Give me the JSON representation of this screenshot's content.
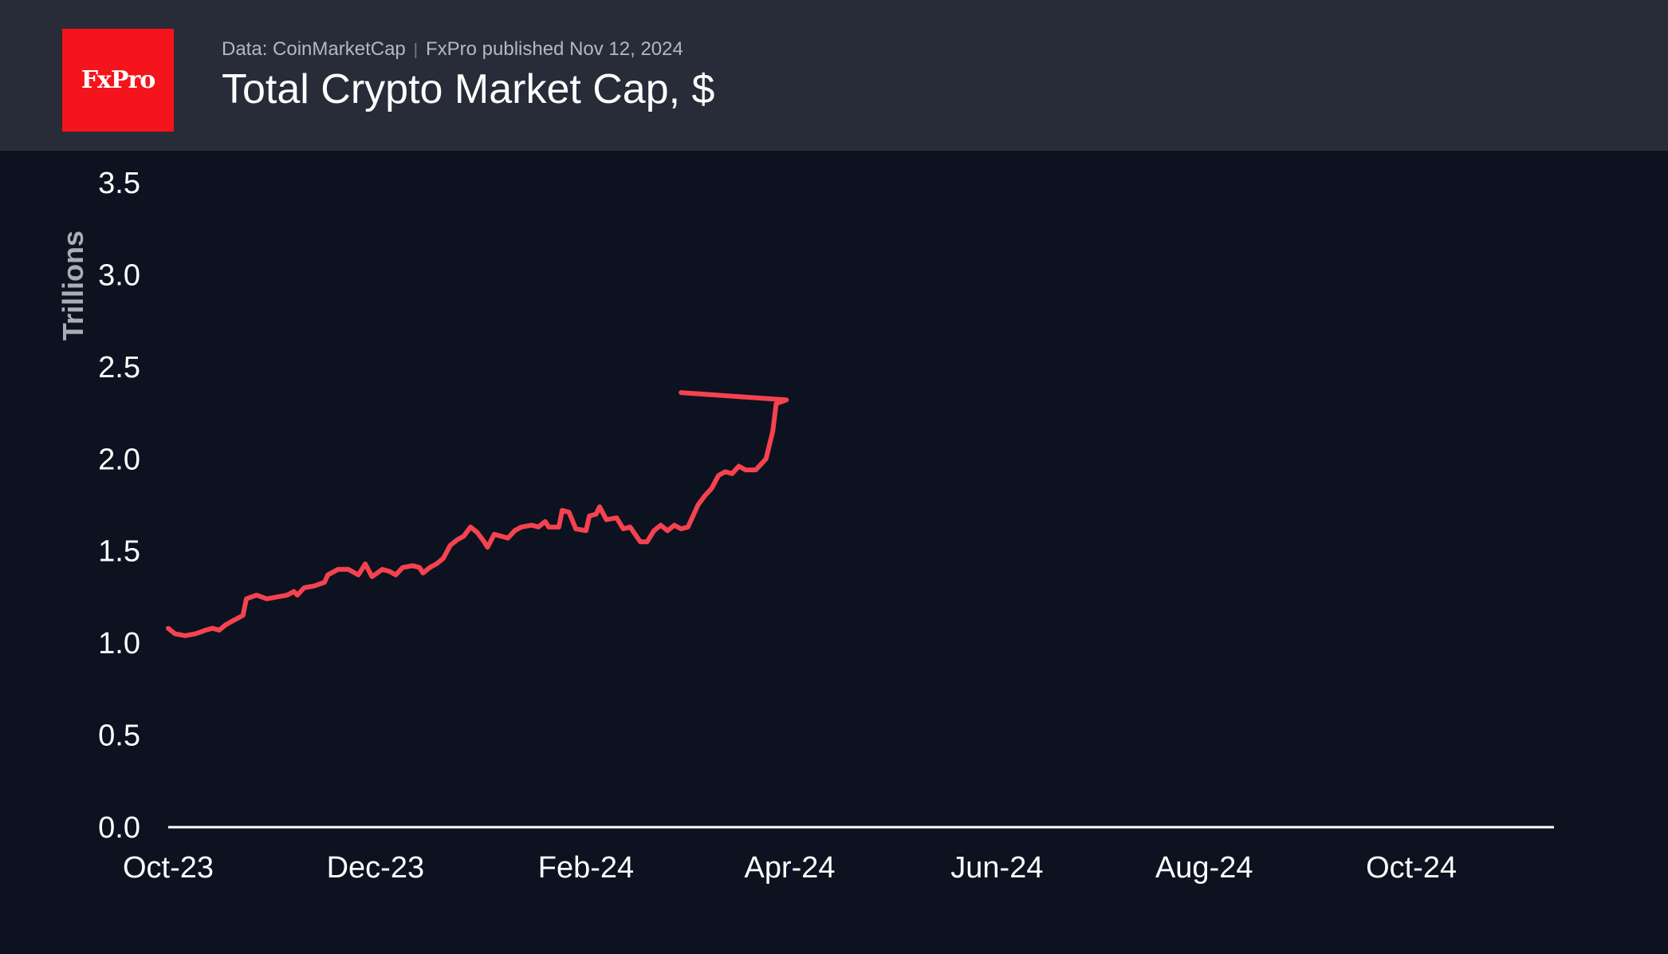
{
  "header": {
    "logo_text": "FxPro",
    "source": "Data: CoinMarketCap",
    "publisher": "FxPro published Nov 12, 2024",
    "title": "Total Crypto Market Cap, $"
  },
  "colors": {
    "background": "#0d1220",
    "header_background": "#282b38",
    "logo_background": "#f5141b",
    "line": "#f5424f",
    "axis": "#ffffff"
  },
  "chart_data": {
    "type": "line",
    "title": "Total Crypto Market Cap, $",
    "xlabel": "",
    "ylabel": "Trillions",
    "ylim": [
      0,
      3.5
    ],
    "yticks": [
      0.0,
      0.5,
      1.0,
      1.5,
      2.0,
      2.5,
      3.0,
      3.5
    ],
    "ytick_labels": [
      "0.0",
      "0.5",
      "1.0",
      "1.5",
      "2.0",
      "2.5",
      "3.0",
      "3.5"
    ],
    "xlim": [
      "2023-10-01",
      "2024-11-12"
    ],
    "xticks": [
      "2023-10-01",
      "2023-12-01",
      "2024-02-01",
      "2024-04-01",
      "2024-06-01",
      "2024-08-01",
      "2024-10-01"
    ],
    "xtick_labels": [
      "Oct-23",
      "Dec-23",
      "Feb-24",
      "Apr-24",
      "Jun-24",
      "Aug-24",
      "Oct-24"
    ],
    "grid": false,
    "legend": "none",
    "series": [
      {
        "values": [
          [
            "2023-10-01",
            1.08
          ],
          [
            "2023-10-03",
            1.05
          ],
          [
            "2023-10-06",
            1.04
          ],
          [
            "2023-10-09",
            1.05
          ],
          [
            "2023-10-12",
            1.07
          ],
          [
            "2023-10-14",
            1.08
          ],
          [
            "2023-10-16",
            1.07
          ],
          [
            "2023-10-18",
            1.1
          ],
          [
            "2023-10-20",
            1.12
          ],
          [
            "2023-10-23",
            1.15
          ],
          [
            "2023-10-24",
            1.24
          ],
          [
            "2023-10-27",
            1.26
          ],
          [
            "2023-10-30",
            1.24
          ],
          [
            "2023-11-02",
            1.25
          ],
          [
            "2023-11-05",
            1.26
          ],
          [
            "2023-11-07",
            1.28
          ],
          [
            "2023-11-08",
            1.26
          ],
          [
            "2023-11-10",
            1.3
          ],
          [
            "2023-11-13",
            1.31
          ],
          [
            "2023-11-16",
            1.33
          ],
          [
            "2023-11-17",
            1.37
          ],
          [
            "2023-11-20",
            1.4
          ],
          [
            "2023-11-23",
            1.4
          ],
          [
            "2023-11-26",
            1.37
          ],
          [
            "2023-11-28",
            1.43
          ],
          [
            "2023-11-30",
            1.36
          ],
          [
            "2023-12-03",
            1.4
          ],
          [
            "2023-12-05",
            1.39
          ],
          [
            "2023-12-07",
            1.37
          ],
          [
            "2023-12-09",
            1.41
          ],
          [
            "2023-12-12",
            1.42
          ],
          [
            "2023-12-14",
            1.41
          ],
          [
            "2023-12-15",
            1.38
          ],
          [
            "2023-12-17",
            1.41
          ],
          [
            "2023-12-19",
            1.43
          ],
          [
            "2023-12-21",
            1.46
          ],
          [
            "2023-12-23",
            1.53
          ],
          [
            "2023-12-25",
            1.56
          ],
          [
            "2023-12-27",
            1.58
          ],
          [
            "2023-12-29",
            1.63
          ],
          [
            "2023-12-31",
            1.6
          ],
          [
            "2024-01-02",
            1.55
          ],
          [
            "2024-01-03",
            1.52
          ],
          [
            "2024-01-05",
            1.59
          ],
          [
            "2024-01-07",
            1.58
          ],
          [
            "2024-01-09",
            1.57
          ],
          [
            "2024-01-11",
            1.61
          ],
          [
            "2024-01-13",
            1.63
          ],
          [
            "2024-01-16",
            1.64
          ],
          [
            "2024-01-18",
            1.63
          ],
          [
            "2024-01-20",
            1.66
          ],
          [
            "2024-01-21",
            1.63
          ],
          [
            "2024-01-24",
            1.63
          ],
          [
            "2024-01-25",
            1.72
          ],
          [
            "2024-01-27",
            1.71
          ],
          [
            "2024-01-29",
            1.62
          ],
          [
            "2024-02-01",
            1.61
          ],
          [
            "2024-02-02",
            1.69
          ],
          [
            "2024-02-04",
            1.7
          ],
          [
            "2024-02-05",
            1.74
          ],
          [
            "2024-02-07",
            1.67
          ],
          [
            "2024-02-10",
            1.68
          ],
          [
            "2024-02-12",
            1.62
          ],
          [
            "2024-02-14",
            1.63
          ],
          [
            "2024-02-17",
            1.55
          ],
          [
            "2024-02-19",
            1.55
          ],
          [
            "2024-02-21",
            1.61
          ],
          [
            "2024-02-23",
            1.64
          ],
          [
            "2024-02-25",
            1.61
          ],
          [
            "2024-02-27",
            1.64
          ],
          [
            "2024-02-29",
            1.62
          ],
          [
            "2024-03-02",
            1.63
          ],
          [
            "2024-03-05",
            1.75
          ],
          [
            "2024-03-07",
            1.8
          ],
          [
            "2024-03-09",
            1.84
          ],
          [
            "2024-03-11",
            1.91
          ],
          [
            "2024-03-13",
            1.93
          ],
          [
            "2024-03-15",
            1.92
          ],
          [
            "2024-03-17",
            1.96
          ],
          [
            "2024-03-19",
            1.94
          ],
          [
            "2024-03-22",
            1.94
          ],
          [
            "2024-03-25",
            2.0
          ],
          [
            "2024-03-27",
            2.15
          ],
          [
            "2024-03-28",
            2.3
          ],
          [
            "2024-03-31",
            2.32
          ],
          [
            "2024-02-29",
            2.36
          ]
        ]
      }
    ]
  }
}
